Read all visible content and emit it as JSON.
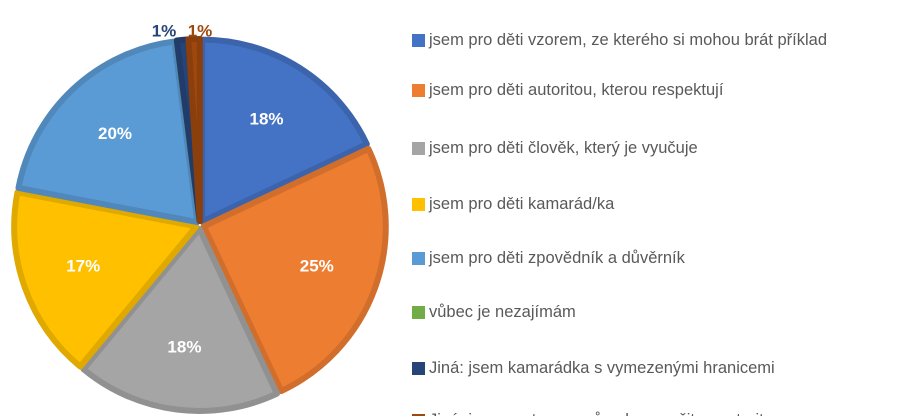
{
  "chart_data": {
    "type": "pie",
    "categories": [
      "jsem pro děti vzorem, ze kterého si mohou brát příklad",
      "jsem pro děti autoritou, kterou respektují",
      "jsem pro děti člověk, který je vyučuje",
      "jsem pro děti kamarád/ka",
      "jsem pro děti zpovědník a důvěrník",
      "vůbec je nezajímám",
      "Jiná: jsem kamarádka s vymezenými hranicemi",
      "Jiná: jsem partner a průvodce s určitou autoritou"
    ],
    "values": [
      18,
      25,
      18,
      17,
      20,
      0,
      1,
      1
    ],
    "value_labels": [
      "18%",
      "25%",
      "18%",
      "17%",
      "20%",
      null,
      "1%",
      "1%"
    ],
    "colors": [
      "#4472c4",
      "#ed7d31",
      "#a5a5a5",
      "#ffc000",
      "#5b9bd5",
      "#70ad47",
      "#264478",
      "#9e480e"
    ],
    "legend": "right"
  }
}
